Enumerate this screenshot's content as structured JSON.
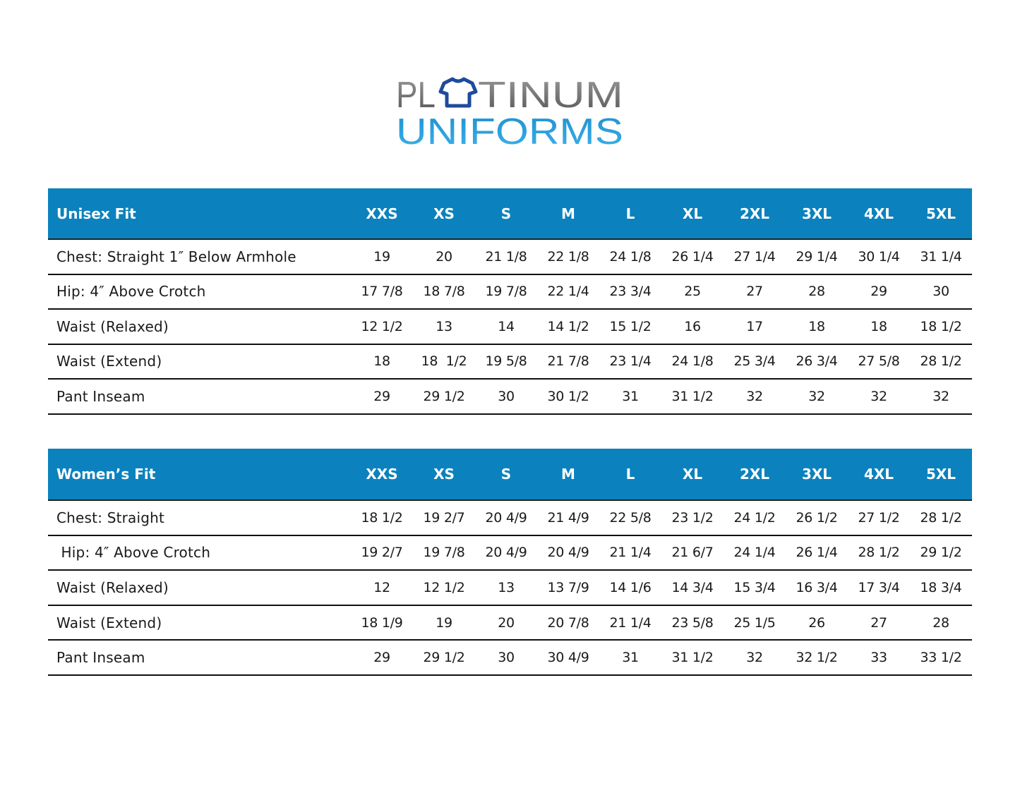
{
  "logo": {
    "line1": "PLATINUM",
    "line2": "UNIFORMS",
    "icon": "t-shirt-icon",
    "colors": {
      "gray": "#6e6e6e",
      "blue": "#2b9fdc",
      "shirt": "#1e4a9c"
    }
  },
  "colors": {
    "header_bg": "#0b82bd",
    "header_text": "#ffffff"
  },
  "tables": [
    {
      "title": "Unisex Fit",
      "sizes": [
        "XXS",
        "XS",
        "S",
        "M",
        "L",
        "XL",
        "2XL",
        "3XL",
        "4XL",
        "5XL"
      ],
      "rows": [
        {
          "label": "Chest: Straight 1″ Below Armhole",
          "values": [
            "19",
            "20",
            "21 1/8",
            "22 1/8",
            "24 1/8",
            "26 1/4",
            "27 1/4",
            "29 1/4",
            "30 1/4",
            "31 1/4"
          ]
        },
        {
          "label": "Hip: 4″ Above Crotch",
          "values": [
            "17 7/8",
            "18 7/8",
            "19 7/8",
            "22 1/4",
            "23 3/4",
            "25",
            "27",
            "28",
            "29",
            "30"
          ]
        },
        {
          "label": "Waist (Relaxed)",
          "values": [
            "12 1/2",
            "13",
            "14",
            "14 1/2",
            "15 1/2",
            "16",
            "17",
            "18",
            "18",
            "18 1/2"
          ]
        },
        {
          "label": "Waist (Extend)",
          "values": [
            "18",
            "18  1/2",
            "19 5/8",
            "21 7/8",
            "23 1/4",
            "24 1/8",
            "25 3/4",
            "26 3/4",
            "27 5/8",
            "28 1/2"
          ]
        },
        {
          "label": "Pant Inseam",
          "values": [
            "29",
            "29 1/2",
            "30",
            "30 1/2",
            "31",
            "31 1/2",
            "32",
            "32",
            "32",
            "32"
          ]
        }
      ]
    },
    {
      "title": "Women’s Fit",
      "sizes": [
        "XXS",
        "XS",
        "S",
        "M",
        "L",
        "XL",
        "2XL",
        "3XL",
        "4XL",
        "5XL"
      ],
      "rows": [
        {
          "label": "Chest: Straight",
          "values": [
            "18 1/2",
            "19 2/7",
            "20 4/9",
            "21 4/9",
            "22 5/8",
            "23 1/2",
            "24 1/2",
            "26 1/2",
            "27 1/2",
            "28 1/2"
          ]
        },
        {
          "label": " Hip: 4″ Above Crotch",
          "values": [
            "19 2/7",
            "19 7/8",
            "20 4/9",
            "20 4/9",
            "21 1/4",
            "21 6/7",
            "24 1/4",
            "26 1/4",
            "28 1/2",
            "29 1/2"
          ]
        },
        {
          "label": "Waist (Relaxed)",
          "values": [
            "12",
            "12 1/2",
            "13",
            "13 7/9",
            "14 1/6",
            "14 3/4",
            "15 3/4",
            "16 3/4",
            "17 3/4",
            "18 3/4"
          ]
        },
        {
          "label": "Waist (Extend)",
          "values": [
            "18 1/9",
            "19",
            "20",
            "20 7/8",
            "21 1/4",
            "23 5/8",
            "25 1/5",
            "26",
            "27",
            "28"
          ]
        },
        {
          "label": "Pant Inseam",
          "values": [
            "29",
            "29 1/2",
            "30",
            "30 4/9",
            "31",
            "31 1/2",
            "32",
            "32 1/2",
            "33",
            "33 1/2"
          ]
        }
      ]
    }
  ]
}
